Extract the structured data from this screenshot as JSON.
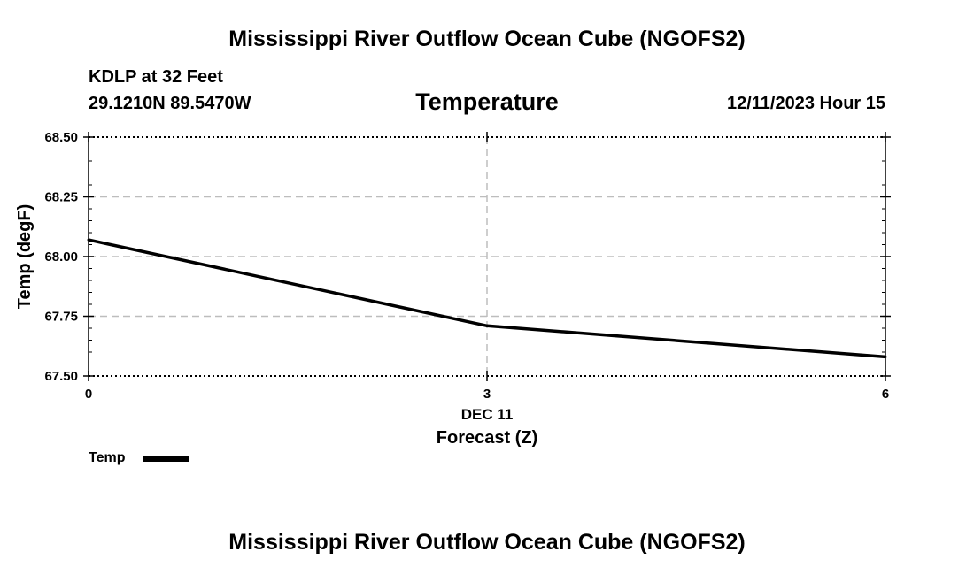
{
  "header": {
    "title": "Mississippi River Outflow Ocean Cube (NGOFS2)",
    "station": "KDLP at 32 Feet",
    "coordinates": "29.1210N  89.5470W",
    "variable": "Temperature",
    "datetime": "12/11/2023 Hour 15"
  },
  "footer": {
    "title": "Mississippi River Outflow Ocean Cube (NGOFS2)"
  },
  "legend": {
    "label": "Temp"
  },
  "chart_data": {
    "type": "line",
    "title": "Temperature",
    "xlabel": "Forecast (Z)",
    "ylabel": "Temp (degF)",
    "xlim": [
      0,
      6
    ],
    "ylim": [
      67.5,
      68.5
    ],
    "x_ticks": [
      {
        "value": 0,
        "label": "0"
      },
      {
        "value": 3,
        "label": "3"
      },
      {
        "value": 6,
        "label": "6"
      }
    ],
    "x_date_label": {
      "value": 3,
      "label": "DEC 11"
    },
    "y_ticks": [
      {
        "value": 67.5,
        "label": "67.50"
      },
      {
        "value": 67.75,
        "label": "67.75"
      },
      {
        "value": 68.0,
        "label": "68.00"
      },
      {
        "value": 68.25,
        "label": "68.25"
      },
      {
        "value": 68.5,
        "label": "68.50"
      }
    ],
    "grid": true,
    "legend_position": "bottom-left",
    "series": [
      {
        "name": "Temp",
        "color": "#000000",
        "x": [
          0,
          3,
          6
        ],
        "values": [
          68.07,
          67.71,
          67.58
        ]
      }
    ]
  }
}
